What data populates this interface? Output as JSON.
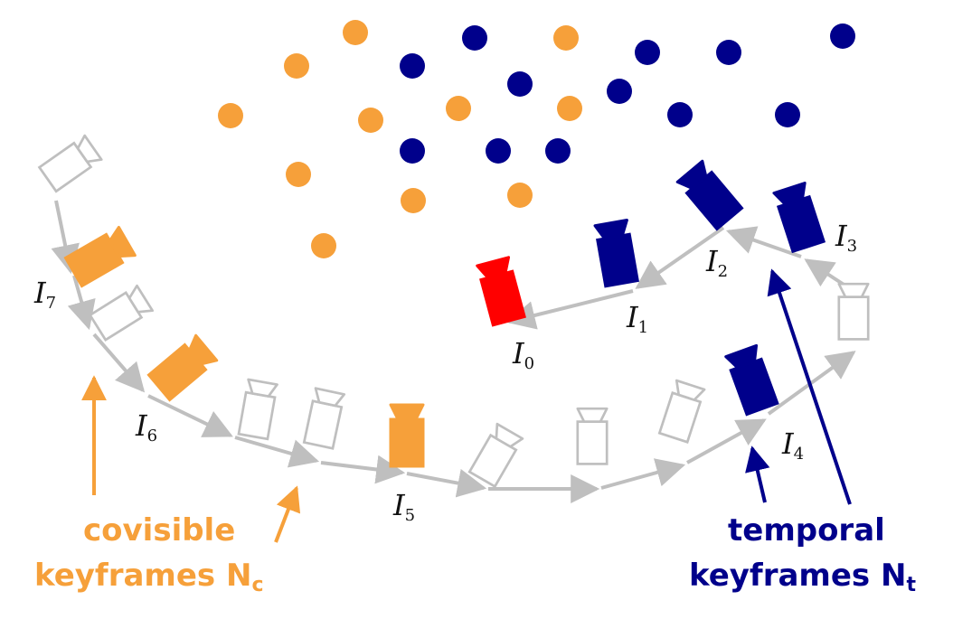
{
  "colors": {
    "covisible": "#f6a03a",
    "temporal": "#00008b",
    "current": "#ff0000",
    "other": "#ffffff",
    "outline": "#bfbfbf",
    "path": "#bfbfbf"
  },
  "keyframes": [
    {
      "name": "I0",
      "base": "I",
      "sub": "0",
      "group": "current"
    },
    {
      "name": "I1",
      "base": "I",
      "sub": "1",
      "group": "temporal"
    },
    {
      "name": "I2",
      "base": "I",
      "sub": "2",
      "group": "temporal"
    },
    {
      "name": "I3",
      "base": "I",
      "sub": "3",
      "group": "temporal"
    },
    {
      "name": "I4",
      "base": "I",
      "sub": "4",
      "group": "temporal"
    },
    {
      "name": "I5",
      "base": "I",
      "sub": "5",
      "group": "covisible"
    },
    {
      "name": "I6",
      "base": "I",
      "sub": "6",
      "group": "covisible"
    },
    {
      "name": "I7",
      "base": "I",
      "sub": "7",
      "group": "covisible"
    }
  ],
  "legend": {
    "covisible": {
      "line1": "covisible",
      "line2": "keyframes N",
      "sub": "c"
    },
    "temporal": {
      "line1": "temporal",
      "line2": "keyframes N",
      "sub": "t"
    }
  }
}
